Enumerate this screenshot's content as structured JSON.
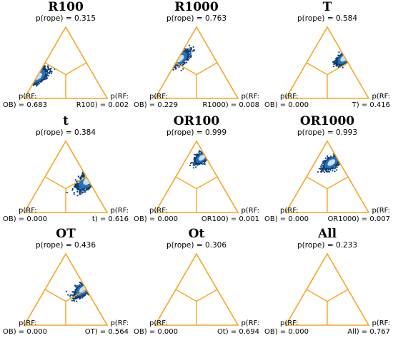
{
  "chart_data": [
    {
      "type": "scatter",
      "title": "R100",
      "p_rope": "p(rope) = 0.315",
      "left_label_1": "p(RF:",
      "left_label_2": "OB) = 0.683",
      "right_label_1": "p(RF:",
      "right_label_2": "R100) = 0.002",
      "p_values": {
        "rope": 0.315,
        "left": 0.683,
        "right": 0.002
      },
      "cloud": {
        "rope": 0.31,
        "left": 0.68,
        "right": 0.01,
        "spread": 0.16
      }
    },
    {
      "type": "scatter",
      "title": "R1000",
      "p_rope": "p(rope) = 0.763",
      "left_label_1": "p(RF:",
      "left_label_2": "OB) = 0.229",
      "right_label_1": "p(RF:",
      "right_label_2": "R1000) = 0.008",
      "p_values": {
        "rope": 0.763,
        "left": 0.229,
        "right": 0.008
      },
      "cloud": {
        "rope": 0.56,
        "left": 0.42,
        "right": 0.02,
        "spread": 0.16
      }
    },
    {
      "type": "scatter",
      "title": "T",
      "p_rope": "p(rope) = 0.584",
      "left_label_1": "p(RF:",
      "left_label_2": "OB) = 0.000",
      "right_label_1": "p(RF:",
      "right_label_2": "T) = 0.416",
      "p_values": {
        "rope": 0.584,
        "left": 0.0,
        "right": 0.416
      },
      "cloud": {
        "rope": 0.56,
        "left": 0.02,
        "right": 0.42,
        "spread": 0.13
      }
    },
    {
      "type": "scatter",
      "title": "t",
      "p_rope": "p(rope) = 0.384",
      "left_label_1": "p(RF:",
      "left_label_2": "OB) = 0.000",
      "right_label_1": "p(RF:",
      "right_label_2": "t) = 0.616",
      "p_values": {
        "rope": 0.384,
        "left": 0.0,
        "right": 0.616
      },
      "cloud": {
        "rope": 0.45,
        "left": 0.004,
        "right": 0.546,
        "spread": 0.2
      }
    },
    {
      "type": "scatter",
      "title": "OR100",
      "p_rope": "p(rope) = 0.999",
      "left_label_1": "p(RF:",
      "left_label_2": "OB) = 0.000",
      "right_label_1": "p(RF:",
      "right_label_2": "OR100) = 0.001",
      "p_values": {
        "rope": 0.999,
        "left": 0.0,
        "right": 0.001
      },
      "cloud": {
        "rope": 0.77,
        "left": 0.05,
        "right": 0.18,
        "spread": 0.12
      }
    },
    {
      "type": "scatter",
      "title": "OR1000",
      "p_rope": "p(rope) = 0.993",
      "left_label_1": "p(RF:",
      "left_label_2": "OB) = 0.000",
      "right_label_1": "p(RF:",
      "right_label_2": "OR1000) = 0.007",
      "p_values": {
        "rope": 0.993,
        "left": 0.0,
        "right": 0.007
      },
      "cloud": {
        "rope": 0.7,
        "left": 0.1,
        "right": 0.2,
        "spread": 0.14
      }
    },
    {
      "type": "scatter",
      "title": "OT",
      "p_rope": "p(rope) = 0.436",
      "left_label_1": "p(RF:",
      "left_label_2": "OB) = 0.000",
      "right_label_1": "p(RF:",
      "right_label_2": "OT) = 0.564",
      "p_values": {
        "rope": 0.436,
        "left": 0.0,
        "right": 0.564
      },
      "cloud": {
        "rope": 0.5,
        "left": 0.04,
        "right": 0.46,
        "spread": 0.15
      }
    },
    {
      "type": "scatter",
      "title": "Ot",
      "p_rope": "p(rope) = 0.306",
      "left_label_1": "p(RF:",
      "left_label_2": "OB) = 0.000",
      "right_label_1": "p(RF:",
      "right_label_2": "Ot) = 0.694",
      "p_values": {
        "rope": 0.306,
        "left": 0.0,
        "right": 0.694
      },
      "cloud": null
    },
    {
      "type": "scatter",
      "title": "All",
      "p_rope": "p(rope) = 0.233",
      "left_label_1": "p(RF:",
      "left_label_2": "OB) = 0.000",
      "right_label_1": "p(RF:",
      "right_label_2": "All) = 0.767",
      "p_values": {
        "rope": 0.233,
        "left": 0.0,
        "right": 0.767
      },
      "cloud": null
    }
  ],
  "colors": {
    "triangle": "#f5a623",
    "cloud_dark": "#0b3d7a",
    "cloud_mid": "#2a72b8",
    "cloud_light": "#c9e0f2"
  }
}
